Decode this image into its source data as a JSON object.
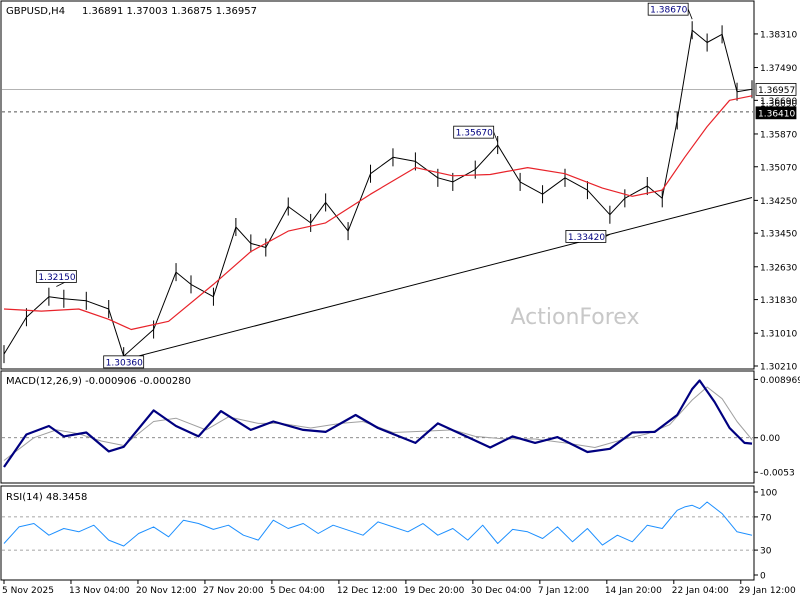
{
  "header": {
    "symbol": "GBPUSD,H4",
    "ohlc": "1.36891 1.37003 1.36875 1.36957"
  },
  "watermark": "ActionForex",
  "colors": {
    "price_line": "#000000",
    "ma_line": "#e8232a",
    "macd_line": "#000080",
    "signal_line": "#a0a0a0",
    "rsi_line": "#1e90ff",
    "level_line": "#555555",
    "axis": "#000000",
    "watermark": "#c8c8c8"
  },
  "chart_data": [
    {
      "type": "line",
      "panel": "price",
      "x_labels": [
        "5 Nov 2025",
        "13 Nov 04:00",
        "20 Nov 12:00",
        "27 Nov 20:00",
        "5 Dec 04:00",
        "12 Dec 12:00",
        "19 Dec 20:00",
        "30 Dec 04:00",
        "7 Jan 12:00",
        "14 Jan 20:00",
        "22 Jan 04:00",
        "29 Jan 12:00"
      ],
      "ylim": [
        1.3021,
        1.3904
      ],
      "y_ticks": [
        1.3021,
        1.3101,
        1.3183,
        1.3263,
        1.3345,
        1.3425,
        1.3507,
        1.3587,
        1.3669,
        1.3749,
        1.3831
      ],
      "y_tick_labels": [
        "1.30210",
        "1.31010",
        "1.31830",
        "1.32630",
        "1.33450",
        "1.34250",
        "1.35070",
        "1.35870",
        "1.36690",
        "1.37490",
        "1.38310"
      ],
      "current_price": 1.36957,
      "current_price_label": "1.36957",
      "levels": [
        {
          "value": 1.3669,
          "label": "1.36690",
          "style": "ma"
        },
        {
          "value": 1.3641,
          "label": "1.36410",
          "style": "dashed"
        }
      ],
      "annotations": [
        {
          "x": 0.07,
          "y": 1.3215,
          "label": "1.32150"
        },
        {
          "x": 0.16,
          "y": 1.3036,
          "label": "1.30360"
        },
        {
          "x": 0.66,
          "y": 1.3567,
          "label": "1.35670"
        },
        {
          "x": 0.81,
          "y": 1.3342,
          "label": "1.33420"
        },
        {
          "x": 0.92,
          "y": 1.3867,
          "label": "1.38670"
        }
      ],
      "trendline": {
        "start": [
          0.16,
          1.3036
        ],
        "end": [
          1.0,
          1.3432
        ]
      },
      "series": [
        {
          "role": "price",
          "x": [
            0.0,
            0.03,
            0.06,
            0.08,
            0.11,
            0.14,
            0.16,
            0.2,
            0.23,
            0.25,
            0.28,
            0.31,
            0.33,
            0.35,
            0.38,
            0.41,
            0.43,
            0.46,
            0.49,
            0.52,
            0.55,
            0.58,
            0.6,
            0.63,
            0.66,
            0.69,
            0.72,
            0.75,
            0.78,
            0.81,
            0.83,
            0.86,
            0.88,
            0.9,
            0.92,
            0.94,
            0.96,
            0.98,
            1.0
          ],
          "values": [
            1.305,
            1.314,
            1.319,
            1.3185,
            1.318,
            1.316,
            1.3045,
            1.311,
            1.325,
            1.322,
            1.319,
            1.336,
            1.332,
            1.331,
            1.341,
            1.337,
            1.342,
            1.335,
            1.349,
            1.353,
            1.352,
            1.348,
            1.347,
            1.35,
            1.356,
            1.347,
            1.344,
            1.348,
            1.345,
            1.339,
            1.343,
            1.346,
            1.343,
            1.362,
            1.384,
            1.381,
            1.383,
            1.369,
            1.3696
          ]
        },
        {
          "role": "ma",
          "x": [
            0.0,
            0.05,
            0.1,
            0.14,
            0.17,
            0.22,
            0.28,
            0.33,
            0.38,
            0.43,
            0.49,
            0.55,
            0.6,
            0.65,
            0.7,
            0.75,
            0.8,
            0.84,
            0.88,
            0.91,
            0.94,
            0.97,
            1.0
          ],
          "values": [
            1.316,
            1.3155,
            1.316,
            1.3135,
            1.311,
            1.313,
            1.322,
            1.33,
            1.335,
            1.337,
            1.344,
            1.3505,
            1.3485,
            1.3488,
            1.3505,
            1.349,
            1.3455,
            1.3435,
            1.345,
            1.353,
            1.3605,
            1.3669,
            1.368
          ]
        }
      ]
    },
    {
      "type": "line",
      "panel": "macd",
      "title": "MACD(12,26,9) -0.000906 -0.000280",
      "ylim": [
        -0.0065,
        0.0098
      ],
      "y_ticks": [
        0.008969,
        0.0,
        -0.0053
      ],
      "y_tick_labels": [
        "0.008969",
        "0.00",
        "-0.0053"
      ],
      "zero_line": 0.0,
      "series": [
        {
          "role": "macd",
          "x": [
            0.0,
            0.03,
            0.06,
            0.08,
            0.11,
            0.14,
            0.16,
            0.2,
            0.23,
            0.26,
            0.29,
            0.33,
            0.36,
            0.4,
            0.43,
            0.47,
            0.5,
            0.55,
            0.58,
            0.62,
            0.65,
            0.68,
            0.71,
            0.74,
            0.78,
            0.81,
            0.84,
            0.87,
            0.9,
            0.92,
            0.93,
            0.95,
            0.97,
            0.99,
            1.0
          ],
          "values": [
            -0.0045,
            0.0005,
            0.0018,
            0.0002,
            0.0008,
            -0.0021,
            -0.0014,
            0.0042,
            0.0018,
            0.0002,
            0.0041,
            0.0012,
            0.0025,
            0.0012,
            0.0009,
            0.0035,
            0.0015,
            -0.0008,
            0.0022,
            0.0001,
            -0.0015,
            0.0002,
            -0.0008,
            0.0001,
            -0.0022,
            -0.0017,
            0.0008,
            0.0009,
            0.0035,
            0.0075,
            0.0088,
            0.0055,
            0.0015,
            -0.0008,
            -0.0009
          ]
        },
        {
          "role": "signal",
          "x": [
            0.0,
            0.04,
            0.07,
            0.1,
            0.13,
            0.16,
            0.2,
            0.23,
            0.27,
            0.3,
            0.34,
            0.37,
            0.41,
            0.45,
            0.48,
            0.52,
            0.56,
            0.6,
            0.63,
            0.67,
            0.71,
            0.75,
            0.79,
            0.83,
            0.86,
            0.89,
            0.92,
            0.94,
            0.96,
            0.98,
            1.0
          ],
          "values": [
            -0.0035,
            0.0,
            0.0012,
            0.0006,
            -0.0005,
            -0.0012,
            0.0025,
            0.003,
            0.0012,
            0.0032,
            0.0022,
            0.0022,
            0.0015,
            0.0022,
            0.0025,
            0.0008,
            0.001,
            0.0012,
            0.0002,
            -0.0002,
            -0.0002,
            -0.0008,
            -0.0015,
            -0.0002,
            0.0006,
            0.002,
            0.0058,
            0.0078,
            0.006,
            0.0025,
            -0.0003
          ]
        }
      ]
    },
    {
      "type": "line",
      "panel": "rsi",
      "title": "RSI(14) 48.3458",
      "ylim": [
        0,
        100
      ],
      "y_ticks": [
        100,
        70,
        30,
        0
      ],
      "y_tick_labels": [
        "100",
        "70",
        "30",
        "0"
      ],
      "levels": [
        70,
        30
      ],
      "series": [
        {
          "role": "rsi",
          "x": [
            0.0,
            0.02,
            0.04,
            0.06,
            0.08,
            0.1,
            0.12,
            0.14,
            0.16,
            0.18,
            0.2,
            0.22,
            0.24,
            0.26,
            0.28,
            0.3,
            0.32,
            0.34,
            0.36,
            0.38,
            0.4,
            0.42,
            0.44,
            0.46,
            0.48,
            0.5,
            0.52,
            0.54,
            0.56,
            0.58,
            0.6,
            0.62,
            0.64,
            0.66,
            0.68,
            0.7,
            0.72,
            0.74,
            0.76,
            0.78,
            0.8,
            0.82,
            0.84,
            0.86,
            0.88,
            0.9,
            0.91,
            0.92,
            0.93,
            0.94,
            0.96,
            0.98,
            1.0
          ],
          "values": [
            38,
            58,
            62,
            48,
            56,
            52,
            60,
            42,
            35,
            50,
            58,
            46,
            66,
            62,
            55,
            60,
            48,
            42,
            66,
            56,
            62,
            50,
            60,
            54,
            48,
            64,
            58,
            52,
            62,
            48,
            56,
            42,
            60,
            38,
            55,
            52,
            44,
            58,
            40,
            56,
            36,
            48,
            40,
            60,
            56,
            78,
            82,
            84,
            80,
            88,
            74,
            52,
            48
          ]
        }
      ]
    }
  ]
}
